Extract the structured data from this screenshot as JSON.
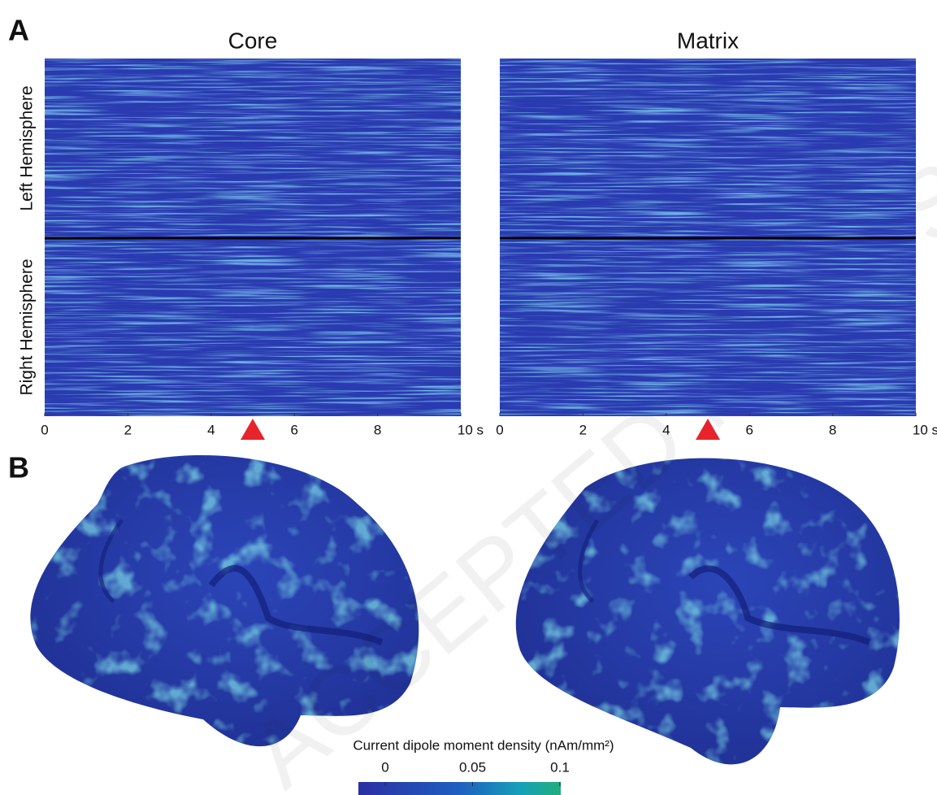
{
  "panel_labels": [
    "A",
    "B"
  ],
  "chart_data": [
    {
      "type": "heatmap",
      "title": "Core",
      "ylabels": [
        "Left Hemisphere",
        "Right Hemisphere"
      ],
      "xlim": [
        0,
        10
      ],
      "xticks": [
        0,
        2,
        4,
        6,
        8,
        {
          "value": 10,
          "label": "10 s"
        }
      ],
      "marker_x": 5,
      "marker_color": "#e8232b"
    },
    {
      "type": "heatmap",
      "title": "Matrix",
      "xlim": [
        0,
        10
      ],
      "xticks": [
        0,
        2,
        4,
        6,
        8,
        {
          "value": 10,
          "label": "10 s"
        }
      ],
      "marker_x": 5,
      "marker_color": "#e8232b"
    }
  ],
  "colorbar": {
    "label": "Current dipole moment density (nAm/mm²)",
    "lim": [
      0,
      0.1
    ],
    "ticks": [
      0,
      0.05,
      0.1
    ]
  },
  "watermark": "ACCEPTED MANUSCRIPT"
}
